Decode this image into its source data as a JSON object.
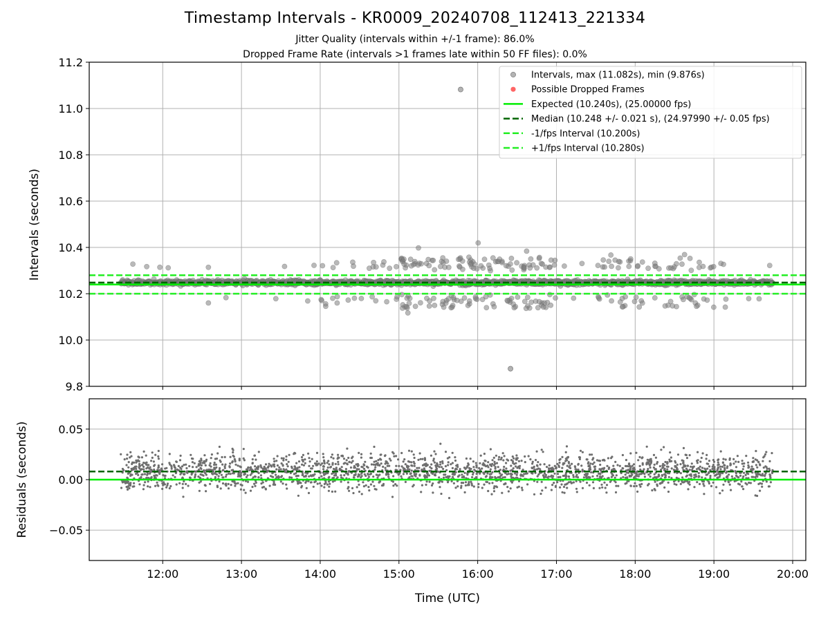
{
  "header": {
    "title": "Timestamp Intervals - KR0009_20240708_112413_221334",
    "subtitle1": "Jitter Quality (intervals within +/-1 frame): 86.0%",
    "subtitle2": "Dropped Frame Rate (intervals >1 frames late within 50 FF files): 0.0%"
  },
  "chart_data": [
    {
      "type": "scatter",
      "panel": "intervals",
      "ylabel": "Intervals (seconds)",
      "xlabel": "",
      "xlim": [
        "11:04",
        "20:10"
      ],
      "ylim": [
        9.8,
        11.2
      ],
      "yticks": [
        "9.8",
        "10.0",
        "10.2",
        "10.4",
        "10.6",
        "10.8",
        "11.0",
        "11.2"
      ],
      "grid": true,
      "legend_position": "top-right",
      "colors": {
        "intervals": "#808080",
        "dropped": "#ff4a4a",
        "expected": "#00ee00",
        "median": "#006400",
        "bounds": "#22ee22"
      },
      "series": [
        {
          "name": "Intervals, max (11.082s), min (9.876s)",
          "kind": "scatter",
          "start": "11:28",
          "end": "19:45",
          "median": 10.248,
          "std": 0.021,
          "max": 11.082,
          "min": 9.876
        },
        {
          "name": "Possible Dropped Frames",
          "kind": "scatter",
          "count": 0
        },
        {
          "name": "Expected (10.240s), (25.00000 fps)",
          "kind": "hline",
          "y": 10.24
        },
        {
          "name": "Median (10.248 +/- 0.021 s), (24.97990 +/- 0.05 fps)",
          "kind": "hline-dashed",
          "y": 10.248
        },
        {
          "name": "-1/fps Interval (10.200s)",
          "kind": "hline-dashed",
          "y": 10.2
        },
        {
          "name": "+1/fps Interval (10.280s)",
          "kind": "hline-dashed",
          "y": 10.28
        }
      ]
    },
    {
      "type": "scatter",
      "panel": "residuals",
      "ylabel": "Residuals (seconds)",
      "xlabel": "Time (UTC)",
      "xlim": [
        "11:04",
        "20:10"
      ],
      "ylim": [
        -0.08,
        0.08
      ],
      "yticks": [
        "−0.05",
        "0.00",
        "0.05"
      ],
      "xticks": [
        "12:00",
        "13:00",
        "14:00",
        "15:00",
        "16:00",
        "17:00",
        "18:00",
        "19:00",
        "20:00"
      ],
      "grid": true,
      "series": [
        {
          "name": "",
          "kind": "scatter",
          "start": "11:28",
          "end": "19:45",
          "std": 0.021
        },
        {
          "name": "",
          "kind": "hline",
          "y": 0.0
        },
        {
          "name": "",
          "kind": "hline-dashed",
          "y": 0.008
        }
      ]
    }
  ]
}
